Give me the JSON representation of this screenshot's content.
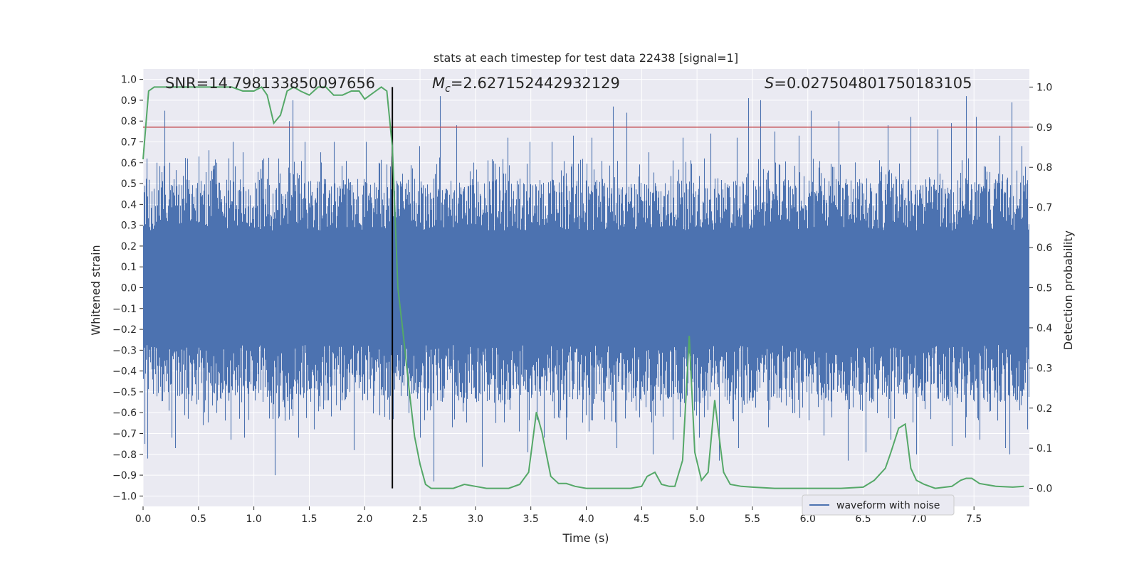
{
  "chart_data": {
    "type": "line",
    "title": "stats at each timestep for test data 22438 [signal=1]",
    "xlabel": "Time (s)",
    "ylabel": "Whitened strain",
    "y2label": "Detection probability",
    "xlim": [
      0.0,
      8.0
    ],
    "ylim": [
      -1.05,
      1.05
    ],
    "y2lim": [
      -0.045,
      1.045
    ],
    "x_ticks": [
      "0.0",
      "0.5",
      "1.0",
      "1.5",
      "2.0",
      "2.5",
      "3.0",
      "3.5",
      "4.0",
      "4.5",
      "5.0",
      "5.5",
      "6.0",
      "6.5",
      "7.0",
      "7.5"
    ],
    "y_ticks": [
      "1.0",
      "0.9",
      "0.8",
      "0.7",
      "0.6",
      "0.5",
      "0.4",
      "0.3",
      "0.2",
      "0.1",
      "0.0",
      "−0.1",
      "−0.2",
      "−0.3",
      "−0.4",
      "−0.5",
      "−0.6",
      "−0.7",
      "−0.8",
      "−0.9",
      "−1.0"
    ],
    "y2_ticks": [
      "1.0",
      "0.9",
      "0.8",
      "0.7",
      "0.6",
      "0.5",
      "0.4",
      "0.3",
      "0.2",
      "0.1",
      "0.0"
    ],
    "grid": true,
    "legend_placement": "lower-right",
    "annotations": {
      "snr": "SNR=14.798133850097656",
      "mc_symbol": "M",
      "mc_sub": "c",
      "mc_value": "=2.627152442932129",
      "s_symbol": "S",
      "s_value": "=0.027504801750183105"
    },
    "threshold": {
      "y2": 0.9,
      "color": "#c44e52"
    },
    "marker_time": 2.25,
    "colors": {
      "waveform": "#4c72b0",
      "probability": "#55a868",
      "background": "#eaeaf2",
      "grid": "#ffffff",
      "marker": "#000000"
    },
    "series": [
      {
        "name": "waveform with noise",
        "envelope_note": "dense noise band",
        "band_core": [
          -0.17,
          0.22
        ],
        "typical_peak": 0.5,
        "spike_peaks": [
          [
            0.03,
            0.62
          ],
          [
            0.12,
            0.6
          ],
          [
            0.19,
            0.85
          ],
          [
            0.24,
            0.6
          ],
          [
            0.29,
            0.7
          ],
          [
            0.4,
            0.62
          ],
          [
            0.5,
            0.63
          ],
          [
            0.59,
            0.66
          ],
          [
            0.66,
            0.6
          ],
          [
            0.81,
            0.7
          ],
          [
            0.9,
            0.65
          ],
          [
            1.06,
            0.57
          ],
          [
            1.22,
            0.62
          ],
          [
            1.32,
            0.8
          ],
          [
            1.35,
            0.9
          ],
          [
            1.46,
            0.7
          ],
          [
            1.6,
            0.65
          ],
          [
            1.72,
            0.7
          ],
          [
            1.9,
            0.58
          ],
          [
            2.01,
            0.7
          ],
          [
            2.13,
            0.6
          ],
          [
            2.24,
            0.63
          ],
          [
            2.49,
            0.68
          ],
          [
            2.68,
            0.92
          ],
          [
            2.83,
            0.78
          ],
          [
            3.06,
            0.7
          ],
          [
            3.29,
            0.72
          ],
          [
            3.49,
            0.7
          ],
          [
            3.69,
            0.7
          ],
          [
            3.88,
            0.73
          ],
          [
            4.05,
            0.72
          ],
          [
            4.24,
            0.87
          ],
          [
            4.36,
            0.84
          ],
          [
            4.56,
            0.65
          ],
          [
            4.87,
            0.72
          ],
          [
            5.12,
            0.74
          ],
          [
            5.36,
            0.72
          ],
          [
            5.46,
            0.91
          ],
          [
            5.57,
            0.9
          ],
          [
            5.7,
            0.75
          ],
          [
            5.92,
            0.73
          ],
          [
            6.03,
            0.85
          ],
          [
            6.28,
            0.8
          ],
          [
            6.52,
            0.8
          ],
          [
            6.72,
            0.78
          ],
          [
            6.93,
            0.82
          ],
          [
            7.17,
            0.76
          ],
          [
            7.29,
            0.79
          ],
          [
            7.43,
            0.92
          ],
          [
            7.52,
            0.82
          ],
          [
            7.73,
            0.73
          ],
          [
            7.84,
            0.89
          ],
          [
            7.93,
            0.68
          ]
        ],
        "spike_troughs": [
          [
            0.01,
            -0.75
          ],
          [
            0.04,
            -0.82
          ],
          [
            0.26,
            -0.72
          ],
          [
            0.29,
            -0.77
          ],
          [
            0.54,
            -0.66
          ],
          [
            0.79,
            -0.73
          ],
          [
            0.91,
            -0.72
          ],
          [
            1.19,
            -0.9
          ],
          [
            1.4,
            -0.72
          ],
          [
            1.54,
            -0.68
          ],
          [
            1.9,
            -0.78
          ],
          [
            2.18,
            -0.62
          ],
          [
            2.5,
            -0.72
          ],
          [
            2.62,
            -0.93
          ],
          [
            2.79,
            -0.67
          ],
          [
            3.06,
            -0.86
          ],
          [
            3.39,
            -0.69
          ],
          [
            3.47,
            -0.79
          ],
          [
            3.62,
            -0.72
          ],
          [
            3.82,
            -0.73
          ],
          [
            4.02,
            -0.69
          ],
          [
            4.27,
            -0.77
          ],
          [
            4.6,
            -0.8
          ],
          [
            4.78,
            -0.73
          ],
          [
            5.02,
            -0.72
          ],
          [
            5.2,
            -0.83
          ],
          [
            5.37,
            -0.77
          ],
          [
            5.64,
            -0.67
          ],
          [
            6.14,
            -0.71
          ],
          [
            6.36,
            -0.83
          ],
          [
            6.52,
            -0.79
          ],
          [
            6.75,
            -0.73
          ],
          [
            6.98,
            -0.8
          ],
          [
            7.3,
            -0.76
          ],
          [
            7.42,
            -0.72
          ],
          [
            7.55,
            -0.73
          ],
          [
            7.78,
            -0.77
          ],
          [
            7.82,
            -0.8
          ],
          [
            7.98,
            -0.68
          ]
        ]
      },
      {
        "name": "",
        "x": [
          0.0,
          0.05,
          0.1,
          0.2,
          0.3,
          0.5,
          0.7,
          0.8,
          0.9,
          1.0,
          1.07,
          1.12,
          1.18,
          1.24,
          1.3,
          1.36,
          1.42,
          1.5,
          1.58,
          1.65,
          1.72,
          1.8,
          1.88,
          1.95,
          2.0,
          2.05,
          2.1,
          2.15,
          2.2,
          2.25,
          2.3,
          2.35,
          2.4,
          2.45,
          2.5,
          2.55,
          2.6,
          2.65,
          2.7,
          2.8,
          2.9,
          3.0,
          3.1,
          3.2,
          3.3,
          3.4,
          3.48,
          3.55,
          3.6,
          3.68,
          3.75,
          3.82,
          3.9,
          4.0,
          4.2,
          4.4,
          4.5,
          4.55,
          4.62,
          4.68,
          4.75,
          4.8,
          4.87,
          4.93,
          4.98,
          5.04,
          5.1,
          5.16,
          5.19,
          5.24,
          5.3,
          5.4,
          5.5,
          5.7,
          6.0,
          6.3,
          6.5,
          6.6,
          6.7,
          6.75,
          6.82,
          6.88,
          6.93,
          6.98,
          7.05,
          7.15,
          7.3,
          7.38,
          7.43,
          7.48,
          7.55,
          7.7,
          7.85,
          7.95
        ],
        "values": [
          0.82,
          0.99,
          1.0,
          1.0,
          1.0,
          1.0,
          1.0,
          1.0,
          0.99,
          0.99,
          1.0,
          0.98,
          0.91,
          0.93,
          0.99,
          1.0,
          0.99,
          0.98,
          1.0,
          1.0,
          0.98,
          0.98,
          0.99,
          0.99,
          0.97,
          0.98,
          0.99,
          1.0,
          0.99,
          0.85,
          0.5,
          0.38,
          0.25,
          0.13,
          0.06,
          0.01,
          0.0,
          0.0,
          0.0,
          0.0,
          0.01,
          0.005,
          0.0,
          0.0,
          0.0,
          0.01,
          0.04,
          0.19,
          0.14,
          0.03,
          0.012,
          0.012,
          0.005,
          0.0,
          0.0,
          0.0,
          0.005,
          0.03,
          0.04,
          0.01,
          0.005,
          0.005,
          0.07,
          0.38,
          0.09,
          0.02,
          0.04,
          0.22,
          0.15,
          0.04,
          0.01,
          0.005,
          0.003,
          0.0,
          0.0,
          0.0,
          0.003,
          0.02,
          0.05,
          0.09,
          0.15,
          0.16,
          0.05,
          0.02,
          0.01,
          0.0,
          0.005,
          0.02,
          0.025,
          0.025,
          0.012,
          0.005,
          0.003,
          0.005
        ]
      }
    ]
  }
}
